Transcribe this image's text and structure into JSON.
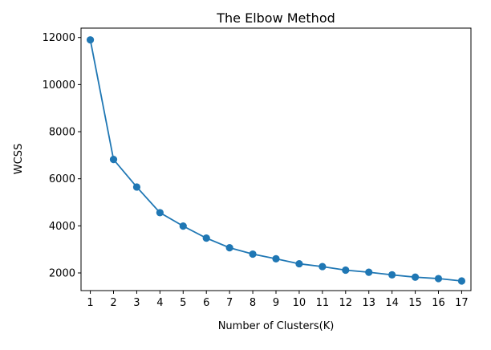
{
  "chart_data": {
    "type": "line",
    "title": "The Elbow Method",
    "xlabel": "Number of Clusters(K)",
    "ylabel": "WCSS",
    "x": [
      1,
      2,
      3,
      4,
      5,
      6,
      7,
      8,
      9,
      10,
      11,
      12,
      13,
      14,
      15,
      16,
      17
    ],
    "series": [
      {
        "values": [
          11900,
          6820,
          5650,
          4560,
          3990,
          3480,
          3070,
          2800,
          2600,
          2390,
          2270,
          2120,
          2030,
          1920,
          1820,
          1760,
          1660
        ],
        "color": "#1f77b4",
        "marker": "circle"
      }
    ],
    "xlim": [
      0.6,
      17.4
    ],
    "ylim": [
      1250,
      12400
    ],
    "yticks": [
      2000,
      4000,
      6000,
      8000,
      10000,
      12000
    ],
    "xticks": [
      1,
      2,
      3,
      4,
      5,
      6,
      7,
      8,
      9,
      10,
      11,
      12,
      13,
      14,
      15,
      16,
      17
    ],
    "grid": false,
    "legend": "none"
  }
}
